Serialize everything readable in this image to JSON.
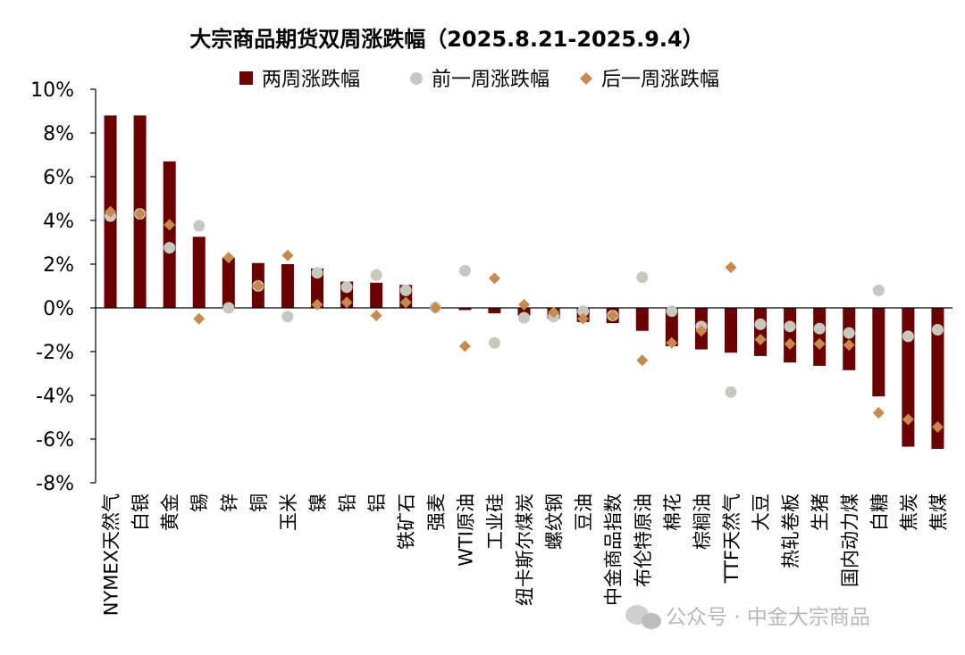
{
  "chart_data": {
    "type": "bar",
    "title": "大宗商品期货双周涨跌幅（2025.8.21-2025.9.4）",
    "categories": [
      "NYMEX天然气",
      "白银",
      "黄金",
      "锡",
      "锌",
      "铜",
      "玉米",
      "镍",
      "铅",
      "铝",
      "铁矿石",
      "强麦",
      "WTI原油",
      "工业硅",
      "纽卡斯尔煤炭",
      "螺纹钢",
      "豆油",
      "中金商品指数",
      "布伦特原油",
      "棉花",
      "棕榈油",
      "TTF天然气",
      "大豆",
      "热轧卷板",
      "生猪",
      "国内动力煤",
      "白糖",
      "焦炭",
      "焦煤"
    ],
    "series": [
      {
        "name": "两周涨跌幅",
        "kind": "bar",
        "color": "#6b0000",
        "values": [
          8.8,
          8.8,
          6.7,
          3.25,
          2.3,
          2.05,
          2.0,
          1.8,
          1.2,
          1.15,
          1.05,
          0.02,
          -0.1,
          -0.25,
          -0.35,
          -0.5,
          -0.65,
          -0.7,
          -1.05,
          -1.75,
          -1.9,
          -2.05,
          -2.2,
          -2.5,
          -2.65,
          -2.85,
          -4.05,
          -6.35,
          -6.45
        ]
      },
      {
        "name": "前一周涨跌幅",
        "kind": "circle",
        "color": "#c8c8be",
        "values": [
          4.2,
          4.3,
          2.75,
          3.75,
          0.0,
          1.0,
          -0.4,
          1.6,
          0.95,
          1.5,
          0.8,
          0.02,
          1.7,
          -1.6,
          -0.45,
          -0.4,
          -0.15,
          -0.35,
          1.4,
          -0.15,
          -0.85,
          -3.85,
          -0.75,
          -0.85,
          -0.95,
          -1.15,
          0.8,
          -1.3,
          -1.0
        ]
      },
      {
        "name": "后一周涨跌幅",
        "kind": "diamond",
        "color": "#c58a4c",
        "values": [
          4.4,
          4.3,
          3.8,
          -0.5,
          2.3,
          1.0,
          2.4,
          0.15,
          0.25,
          -0.35,
          0.25,
          0.0,
          -1.75,
          1.35,
          0.15,
          -0.2,
          -0.5,
          -0.35,
          -2.4,
          -1.6,
          -1.05,
          1.85,
          -1.45,
          -1.65,
          -1.65,
          -1.7,
          -4.8,
          -5.1,
          -5.45
        ]
      }
    ],
    "ylim": [
      -8,
      10
    ],
    "yticks": [
      -8,
      -6,
      -4,
      -2,
      0,
      2,
      4,
      6,
      8,
      10
    ],
    "y_tick_labels": [
      "-8%",
      "-6%",
      "-4%",
      "-2%",
      "0%",
      "2%",
      "4%",
      "6%",
      "8%",
      "10%"
    ],
    "legend_position": "top",
    "grid": false
  },
  "watermark": "公众号 · 中金大宗商品"
}
